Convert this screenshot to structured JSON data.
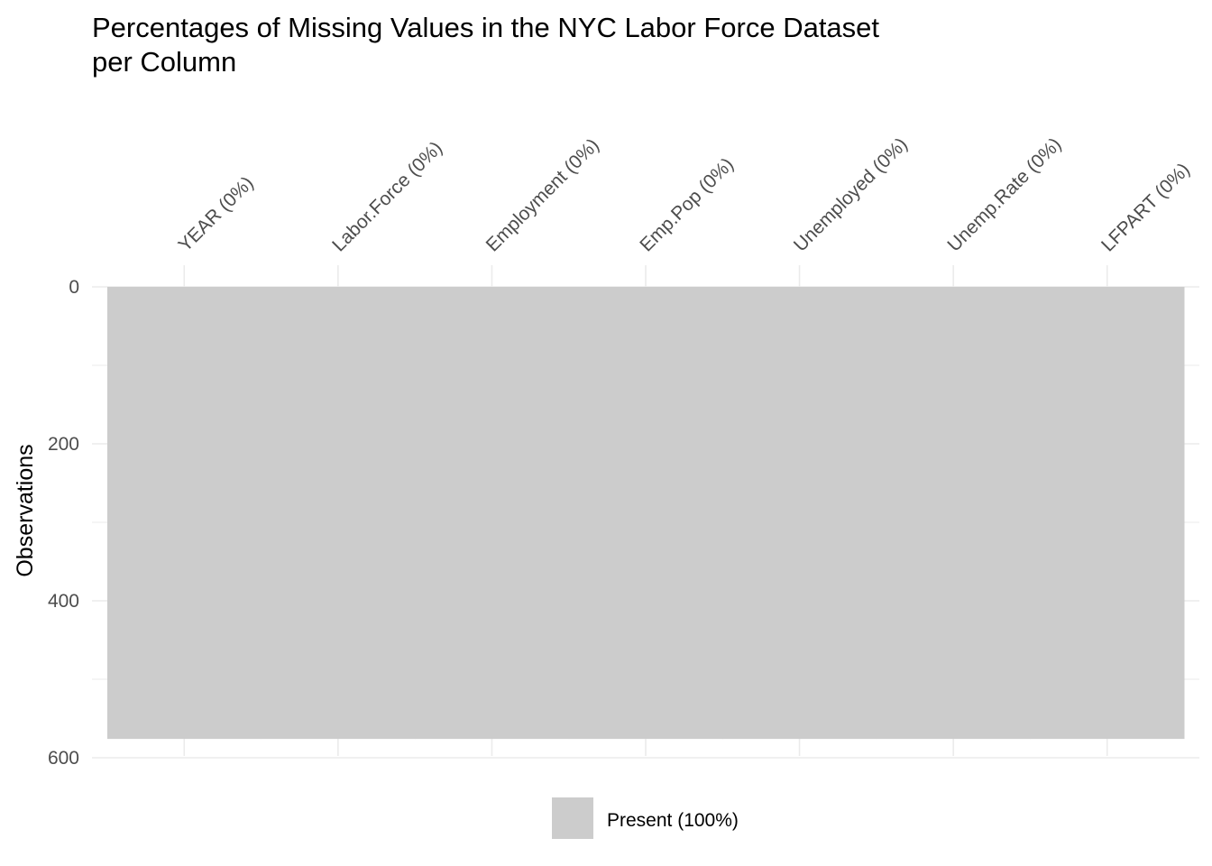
{
  "chart_data": {
    "type": "heatmap",
    "title_lines": [
      "Percentages of Missing Values in the NYC Labor Force Dataset",
      "per Column"
    ],
    "xlabel": "",
    "ylabel": "Observations",
    "categories": [
      "YEAR (0%)",
      "Labor.Force (0%)",
      "Employment (0%)",
      "Emp.Pop (0%)",
      "Unemployed (0%)",
      "Unemp.Rate (0%)",
      "LFPART (0%)"
    ],
    "rows": 576,
    "ylim": [
      0,
      600
    ],
    "y_reversed": true,
    "yticks": [
      0,
      200,
      400,
      600
    ],
    "x_axis_position": "top",
    "grid": true,
    "legend": {
      "position": "bottom",
      "entries": [
        {
          "label": "Present (100%)",
          "color": "#cccccc"
        }
      ]
    },
    "colors": {
      "present": "#cccccc",
      "grid": "#ebebeb"
    }
  }
}
